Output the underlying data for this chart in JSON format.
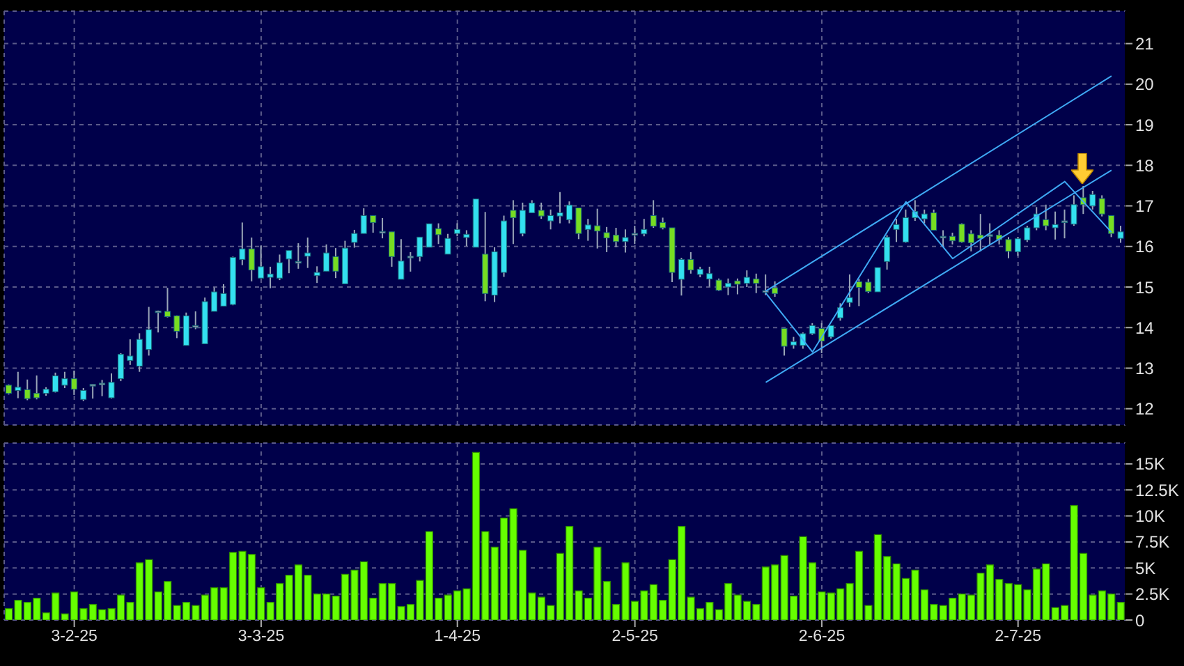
{
  "chart_data": [
    {
      "type": "candlestick",
      "grid": true,
      "tick_labels": "y",
      "ylim": [
        11.6,
        21.8
      ],
      "yticks": [
        12,
        13,
        14,
        15,
        16,
        17,
        18,
        19,
        20,
        21
      ],
      "categories": [
        null,
        null,
        null,
        null,
        null,
        null,
        null,
        null,
        null,
        null,
        null,
        null,
        null,
        null,
        null,
        null,
        null,
        null,
        null,
        null,
        null,
        null,
        null,
        null,
        null,
        null,
        null,
        null,
        null,
        null,
        null,
        null,
        null,
        null,
        null,
        null,
        null,
        null,
        null,
        null,
        null,
        null,
        null,
        null,
        null,
        null,
        null,
        null,
        null,
        null,
        null,
        null,
        null,
        null,
        null,
        null,
        null,
        null,
        null,
        null,
        null,
        null,
        null,
        null,
        null,
        null,
        null,
        null,
        null,
        null,
        null,
        null,
        null,
        null,
        null,
        null,
        null,
        null,
        null,
        null,
        null,
        null,
        null,
        null,
        null,
        null,
        null,
        null,
        null,
        null,
        null,
        null,
        null,
        null,
        null,
        null,
        null,
        null,
        null,
        null,
        null,
        null,
        null,
        null,
        null,
        null,
        null,
        null,
        null,
        null,
        null,
        null,
        null,
        null,
        null,
        null,
        null,
        null,
        null,
        null
      ],
      "ohlc": [
        [
          12.58,
          12.6,
          12.35,
          12.38
        ],
        [
          12.45,
          12.91,
          12.26,
          12.53
        ],
        [
          12.47,
          12.72,
          12.21,
          12.25
        ],
        [
          12.38,
          12.82,
          12.23,
          12.27
        ],
        [
          12.38,
          12.53,
          12.32,
          12.48
        ],
        [
          12.42,
          12.89,
          12.4,
          12.81
        ],
        [
          12.58,
          12.91,
          12.51,
          12.74
        ],
        [
          12.74,
          12.94,
          12.34,
          12.48
        ],
        [
          12.23,
          12.51,
          12.19,
          12.45
        ],
        [
          12.59,
          12.6,
          12.25,
          12.6
        ],
        [
          12.62,
          12.71,
          12.31,
          12.63
        ],
        [
          12.27,
          12.87,
          12.25,
          12.65
        ],
        [
          12.74,
          13.37,
          12.68,
          13.34
        ],
        [
          13.19,
          13.71,
          13.08,
          13.3
        ],
        [
          13.05,
          13.86,
          12.91,
          13.71
        ],
        [
          13.46,
          14.51,
          13.31,
          13.95
        ],
        [
          14.4,
          14.42,
          13.88,
          14.41
        ],
        [
          14.4,
          14.98,
          14.25,
          14.27
        ],
        [
          14.29,
          14.3,
          13.74,
          13.91
        ],
        [
          13.56,
          14.37,
          13.56,
          14.29
        ],
        [
          14.04,
          14.4,
          13.96,
          14.05
        ],
        [
          13.6,
          14.74,
          13.6,
          14.64
        ],
        [
          14.4,
          14.99,
          14.4,
          14.88
        ],
        [
          14.53,
          15.07,
          14.53,
          14.84
        ],
        [
          14.57,
          15.75,
          14.55,
          15.73
        ],
        [
          15.68,
          16.59,
          15.54,
          15.94
        ],
        [
          15.94,
          16.22,
          15.14,
          15.42
        ],
        [
          15.22,
          16.02,
          15.22,
          15.5
        ],
        [
          15.24,
          15.5,
          14.97,
          15.32
        ],
        [
          15.22,
          15.8,
          15.17,
          15.6
        ],
        [
          15.69,
          15.9,
          15.34,
          15.9
        ],
        [
          15.62,
          16.08,
          15.45,
          15.63
        ],
        [
          15.76,
          16.22,
          15.47,
          15.84
        ],
        [
          15.28,
          15.51,
          15.1,
          15.36
        ],
        [
          15.39,
          16.05,
          15.39,
          15.84
        ],
        [
          15.75,
          15.96,
          15.22,
          15.39
        ],
        [
          15.08,
          16.14,
          15.08,
          15.96
        ],
        [
          16.1,
          16.41,
          15.97,
          16.32
        ],
        [
          16.32,
          16.94,
          16.32,
          16.76
        ],
        [
          16.76,
          16.76,
          16.34,
          16.59
        ],
        [
          16.36,
          16.7,
          16.2,
          16.37
        ],
        [
          16.36,
          16.36,
          15.5,
          15.75
        ],
        [
          15.19,
          16.18,
          15.19,
          15.64
        ],
        [
          15.75,
          15.86,
          15.38,
          15.76
        ],
        [
          15.75,
          16.23,
          15.63,
          16.23
        ],
        [
          15.98,
          16.56,
          15.98,
          16.56
        ],
        [
          16.44,
          16.57,
          16.06,
          16.29
        ],
        [
          15.81,
          16.31,
          15.81,
          16.2
        ],
        [
          16.32,
          16.57,
          16.25,
          16.42
        ],
        [
          16.22,
          16.4,
          16.01,
          16.3
        ],
        [
          15.98,
          17.17,
          15.98,
          17.17
        ],
        [
          15.81,
          16.85,
          14.65,
          14.84
        ],
        [
          14.8,
          15.98,
          14.63,
          15.87
        ],
        [
          15.36,
          16.76,
          15.25,
          16.63
        ],
        [
          16.89,
          17.14,
          16.06,
          16.71
        ],
        [
          16.32,
          17.08,
          16.25,
          16.89
        ],
        [
          16.83,
          17.14,
          16.83,
          17.07
        ],
        [
          16.89,
          17.08,
          16.68,
          16.75
        ],
        [
          16.63,
          16.91,
          16.42,
          16.76
        ],
        [
          16.75,
          17.34,
          16.57,
          16.83
        ],
        [
          16.66,
          17.11,
          16.57,
          17.02
        ],
        [
          16.95,
          16.95,
          16.18,
          16.32
        ],
        [
          16.42,
          16.68,
          16.14,
          16.53
        ],
        [
          16.51,
          16.93,
          15.95,
          16.38
        ],
        [
          16.34,
          16.48,
          15.86,
          16.21
        ],
        [
          16.28,
          16.46,
          15.98,
          16.12
        ],
        [
          16.12,
          16.42,
          15.85,
          16.22
        ],
        [
          16.31,
          16.51,
          16.06,
          16.32
        ],
        [
          16.31,
          16.68,
          16.25,
          16.42
        ],
        [
          16.76,
          17.14,
          16.46,
          16.5
        ],
        [
          16.59,
          16.71,
          16.42,
          16.46
        ],
        [
          16.46,
          16.46,
          15.12,
          15.36
        ],
        [
          15.19,
          15.72,
          14.79,
          15.68
        ],
        [
          15.68,
          15.86,
          15.33,
          15.42
        ],
        [
          15.31,
          15.5,
          15.24,
          15.44
        ],
        [
          15.2,
          15.5,
          15.01,
          15.33
        ],
        [
          15.17,
          15.21,
          14.9,
          14.92
        ],
        [
          15.0,
          15.21,
          14.8,
          15.09
        ],
        [
          15.15,
          15.21,
          14.82,
          15.07
        ],
        [
          15.09,
          15.41,
          15.0,
          15.24
        ],
        [
          15.2,
          15.33,
          14.85,
          15.09
        ],
        [
          14.9,
          15.31,
          14.8,
          14.91
        ],
        [
          14.98,
          15.14,
          14.76,
          14.84
        ],
        [
          13.98,
          13.98,
          13.31,
          13.54
        ],
        [
          13.57,
          13.77,
          13.48,
          13.65
        ],
        [
          13.56,
          13.88,
          13.48,
          13.85
        ],
        [
          13.85,
          14.11,
          13.82,
          14.05
        ],
        [
          13.98,
          14.11,
          13.37,
          13.67
        ],
        [
          13.77,
          14.05,
          13.73,
          14.05
        ],
        [
          14.24,
          14.6,
          14.17,
          14.49
        ],
        [
          14.62,
          15.31,
          14.51,
          14.74
        ],
        [
          15.13,
          15.2,
          14.53,
          14.99
        ],
        [
          15.12,
          15.2,
          14.85,
          14.89
        ],
        [
          14.88,
          15.48,
          14.88,
          15.48
        ],
        [
          15.63,
          16.28,
          15.43,
          16.23
        ],
        [
          16.42,
          16.68,
          16.11,
          16.54
        ],
        [
          16.11,
          16.91,
          16.09,
          16.71
        ],
        [
          16.71,
          17.14,
          16.63,
          16.86
        ],
        [
          16.68,
          16.91,
          16.57,
          16.8
        ],
        [
          16.83,
          16.91,
          16.4,
          16.4
        ],
        [
          16.25,
          16.4,
          16.0,
          16.24
        ],
        [
          16.25,
          16.34,
          16.05,
          16.14
        ],
        [
          16.55,
          16.57,
          16.09,
          16.11
        ],
        [
          16.31,
          16.4,
          15.88,
          16.09
        ],
        [
          16.28,
          16.8,
          15.88,
          16.2
        ],
        [
          16.28,
          16.57,
          16.05,
          16.29
        ],
        [
          16.28,
          16.4,
          16.05,
          16.17
        ],
        [
          16.17,
          16.23,
          15.71,
          15.88
        ],
        [
          15.87,
          16.23,
          15.77,
          16.19
        ],
        [
          16.16,
          16.51,
          16.11,
          16.46
        ],
        [
          16.46,
          16.97,
          16.4,
          16.8
        ],
        [
          16.66,
          17.03,
          16.4,
          16.51
        ],
        [
          16.46,
          16.86,
          16.17,
          16.54
        ],
        [
          16.62,
          16.91,
          16.2,
          16.63
        ],
        [
          16.55,
          17.26,
          16.51,
          17.03
        ],
        [
          17.2,
          17.49,
          16.8,
          17.03
        ],
        [
          17.0,
          17.37,
          16.91,
          17.28
        ],
        [
          17.18,
          17.26,
          16.74,
          16.8
        ],
        [
          16.76,
          16.76,
          16.23,
          16.32
        ],
        [
          16.2,
          16.51,
          16.09,
          16.36
        ]
      ],
      "colors": [
        "#77dd22",
        "#33e0f0",
        "#77dd22",
        "#77dd22",
        "#33e0f0",
        "#33e0f0",
        "#33e0f0",
        "#77dd22",
        "#33e0f0",
        "#8c9aa8",
        "#8c9aa8",
        "#33e0f0",
        "#33e0f0",
        "#33e0f0",
        "#33e0f0",
        "#33e0f0",
        "#8c9aa8",
        "#77dd22",
        "#77dd22",
        "#33e0f0",
        "#8c9aa8",
        "#33e0f0",
        "#33e0f0",
        "#33e0f0",
        "#33e0f0",
        "#33e0f0",
        "#77dd22",
        "#33e0f0",
        "#33e0f0",
        "#33e0f0",
        "#33e0f0",
        "#8c9aa8",
        "#33e0f0",
        "#33e0f0",
        "#33e0f0",
        "#77dd22",
        "#33e0f0",
        "#33e0f0",
        "#33e0f0",
        "#77dd22",
        "#8c9aa8",
        "#77dd22",
        "#33e0f0",
        "#8c9aa8",
        "#33e0f0",
        "#33e0f0",
        "#77dd22",
        "#33e0f0",
        "#33e0f0",
        "#33e0f0",
        "#33e0f0",
        "#77dd22",
        "#33e0f0",
        "#33e0f0",
        "#77dd22",
        "#33e0f0",
        "#33e0f0",
        "#77dd22",
        "#33e0f0",
        "#33e0f0",
        "#33e0f0",
        "#77dd22",
        "#33e0f0",
        "#77dd22",
        "#77dd22",
        "#77dd22",
        "#33e0f0",
        "#8c9aa8",
        "#33e0f0",
        "#77dd22",
        "#77dd22",
        "#77dd22",
        "#33e0f0",
        "#77dd22",
        "#33e0f0",
        "#33e0f0",
        "#77dd22",
        "#33e0f0",
        "#77dd22",
        "#33e0f0",
        "#77dd22",
        "#8c9aa8",
        "#77dd22",
        "#77dd22",
        "#33e0f0",
        "#33e0f0",
        "#33e0f0",
        "#77dd22",
        "#33e0f0",
        "#33e0f0",
        "#33e0f0",
        "#77dd22",
        "#77dd22",
        "#33e0f0",
        "#33e0f0",
        "#33e0f0",
        "#33e0f0",
        "#33e0f0",
        "#33e0f0",
        "#77dd22",
        "#8c9aa8",
        "#77dd22",
        "#77dd22",
        "#77dd22",
        "#77dd22",
        "#8c9aa8",
        "#77dd22",
        "#77dd22",
        "#33e0f0",
        "#33e0f0",
        "#33e0f0",
        "#77dd22",
        "#33e0f0",
        "#8c9aa8",
        "#33e0f0",
        "#77dd22",
        "#33e0f0",
        "#77dd22",
        "#77dd22",
        "#33e0f0"
      ],
      "series": [
        {
          "type": "line",
          "color": "#3fa9f5",
          "values": [
            null,
            null,
            null,
            null,
            null,
            null,
            null,
            null,
            null,
            null,
            null,
            null,
            null,
            null,
            null,
            null,
            null,
            null,
            null,
            null,
            null,
            null,
            null,
            null,
            null,
            null,
            null,
            null,
            null,
            null,
            null,
            null,
            null,
            null,
            null,
            null,
            null,
            null,
            null,
            null,
            null,
            null,
            null,
            null,
            null,
            null,
            null,
            null,
            null,
            null,
            null,
            null,
            null,
            null,
            null,
            null,
            null,
            null,
            null,
            null,
            null,
            null,
            null,
            null,
            null,
            null,
            null,
            null,
            null,
            null,
            null,
            null,
            null,
            null,
            null,
            null,
            null,
            null,
            null,
            null,
            null,
            14.9,
            null,
            null,
            null,
            null,
            null,
            null,
            null,
            null,
            null,
            null,
            null,
            null,
            null,
            null,
            null,
            null,
            null,
            null,
            null,
            null,
            null,
            null,
            null,
            null,
            null,
            null,
            null,
            null,
            null,
            null,
            null,
            null,
            null,
            null,
            null,
            null,
            20.2,
            null
          ]
        },
        {
          "type": "line",
          "color": "#3fa9f5",
          "values": [
            null,
            null,
            null,
            null,
            null,
            null,
            null,
            null,
            null,
            null,
            null,
            null,
            null,
            null,
            null,
            null,
            null,
            null,
            null,
            null,
            null,
            null,
            null,
            null,
            null,
            null,
            null,
            null,
            null,
            null,
            null,
            null,
            null,
            null,
            null,
            null,
            null,
            null,
            null,
            null,
            null,
            null,
            null,
            null,
            null,
            null,
            null,
            null,
            null,
            null,
            null,
            null,
            null,
            null,
            null,
            null,
            null,
            null,
            null,
            null,
            null,
            null,
            null,
            null,
            null,
            null,
            null,
            null,
            null,
            null,
            null,
            null,
            null,
            null,
            null,
            null,
            null,
            null,
            null,
            null,
            null,
            12.65,
            null,
            null,
            null,
            null,
            null,
            null,
            null,
            null,
            null,
            null,
            null,
            null,
            null,
            null,
            null,
            null,
            null,
            null,
            null,
            null,
            null,
            null,
            null,
            null,
            null,
            null,
            null,
            null,
            null,
            null,
            null,
            null,
            null,
            null,
            null,
            null,
            17.88,
            null
          ]
        },
        {
          "type": "line",
          "color": "#3fa9f5",
          "values": [
            null,
            null,
            null,
            null,
            null,
            null,
            null,
            null,
            null,
            null,
            null,
            null,
            null,
            null,
            null,
            null,
            null,
            null,
            null,
            null,
            null,
            null,
            null,
            null,
            null,
            null,
            null,
            null,
            null,
            null,
            null,
            null,
            null,
            null,
            null,
            null,
            null,
            null,
            null,
            null,
            null,
            null,
            null,
            null,
            null,
            null,
            null,
            null,
            null,
            null,
            null,
            null,
            null,
            null,
            null,
            null,
            null,
            null,
            null,
            null,
            null,
            null,
            null,
            null,
            null,
            null,
            null,
            null,
            null,
            null,
            null,
            null,
            null,
            null,
            null,
            null,
            null,
            null,
            null,
            null,
            null,
            14.85,
            null,
            null,
            null,
            null,
            13.4,
            null,
            null,
            null,
            null,
            null,
            null,
            null,
            null,
            null,
            17.1,
            null,
            null,
            null,
            null,
            15.7,
            null,
            null,
            null,
            null,
            null,
            null,
            null,
            null,
            null,
            null,
            null,
            17.6,
            null,
            null,
            null,
            null,
            16.35,
            null
          ]
        }
      ]
    },
    {
      "type": "bar",
      "grid": true,
      "color": "#66ff00",
      "ylim": [
        0,
        17000
      ],
      "yticks": [
        0,
        {
          "value": 2500,
          "label": "2.5K"
        },
        {
          "value": 5000,
          "label": "5K"
        },
        {
          "value": 7500,
          "label": "7.5K"
        },
        {
          "value": 10000,
          "label": "10K"
        },
        {
          "value": 12500,
          "label": "12.5K"
        },
        {
          "value": 15000,
          "label": "15K"
        }
      ],
      "categories": [
        null,
        null,
        null,
        null,
        null,
        null,
        null,
        "3-2-25",
        null,
        null,
        null,
        null,
        null,
        null,
        null,
        null,
        null,
        null,
        null,
        null,
        null,
        null,
        null,
        null,
        null,
        null,
        null,
        "3-3-25",
        null,
        null,
        null,
        null,
        null,
        null,
        null,
        null,
        null,
        null,
        null,
        null,
        null,
        null,
        null,
        null,
        null,
        null,
        null,
        null,
        "1-4-25",
        null,
        null,
        null,
        null,
        null,
        null,
        null,
        null,
        null,
        null,
        null,
        null,
        null,
        null,
        null,
        null,
        null,
        null,
        "2-5-25",
        null,
        null,
        null,
        null,
        null,
        null,
        null,
        null,
        null,
        null,
        null,
        null,
        null,
        null,
        null,
        null,
        null,
        null,
        null,
        "2-6-25",
        null,
        null,
        null,
        null,
        null,
        null,
        null,
        null,
        null,
        null,
        null,
        null,
        null,
        null,
        null,
        null,
        null,
        null,
        null,
        null,
        "2-7-25",
        null,
        null,
        null,
        null,
        null,
        null,
        null,
        null,
        null,
        null,
        null
      ],
      "values": [
        1100,
        1900,
        1700,
        2100,
        700,
        2600,
        600,
        2700,
        1100,
        1500,
        1000,
        1100,
        2400,
        1700,
        5500,
        5800,
        2700,
        3700,
        1400,
        1700,
        1400,
        2400,
        3100,
        3100,
        6500,
        6600,
        6300,
        3100,
        1700,
        3500,
        4300,
        5300,
        4300,
        2500,
        2500,
        2300,
        4400,
        4800,
        5600,
        2100,
        3500,
        3500,
        1300,
        1500,
        3800,
        8500,
        2100,
        2400,
        2800,
        3000,
        16100,
        8500,
        7000,
        9800,
        10700,
        6700,
        2600,
        2200,
        1400,
        6400,
        9000,
        2800,
        2100,
        7000,
        3700,
        1500,
        5500,
        1800,
        2800,
        3400,
        1900,
        5800,
        9000,
        2200,
        1100,
        1700,
        1000,
        3500,
        2400,
        1800,
        1500,
        5100,
        5300,
        6200,
        2300,
        8000,
        5500,
        2700,
        2600,
        3000,
        3500,
        6600,
        1400,
        8200,
        6100,
        5400,
        4000,
        4800,
        2900,
        1500,
        1400,
        2100,
        2500,
        2400,
        4500,
        5300,
        3900,
        3500,
        3400,
        2900,
        4900,
        5400,
        1200,
        1400,
        11000,
        6400,
        2400,
        2800,
        2500,
        1700
      ]
    }
  ]
}
